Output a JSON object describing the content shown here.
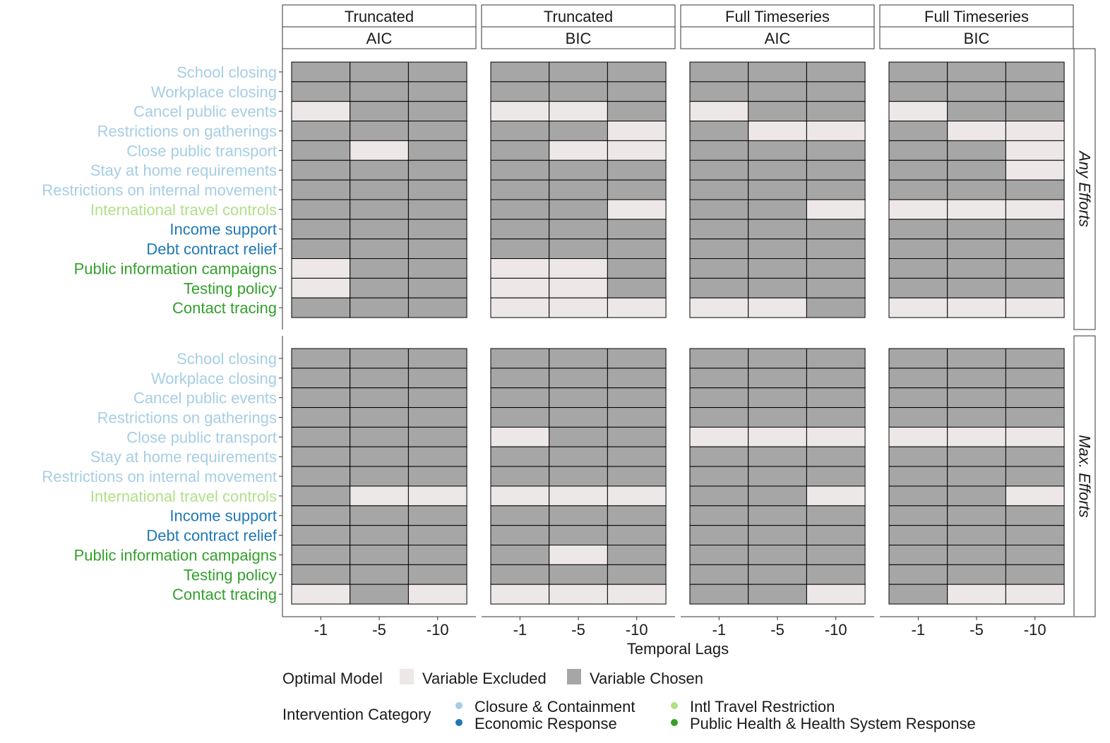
{
  "chart_data": {
    "type": "heatmap",
    "column_facets": [
      {
        "method": "Truncated",
        "criterion": "AIC"
      },
      {
        "method": "Truncated",
        "criterion": "BIC"
      },
      {
        "method": "Full Timeseries",
        "criterion": "AIC"
      },
      {
        "method": "Full Timeseries",
        "criterion": "BIC"
      }
    ],
    "row_facets": [
      "Any Efforts",
      "Max. Efforts"
    ],
    "x_categories": [
      "-1",
      "-5",
      "-10"
    ],
    "xlabel": "Temporal Lags",
    "variables": [
      {
        "name": "School closing",
        "category": "Closure & Containment"
      },
      {
        "name": "Workplace closing",
        "category": "Closure & Containment"
      },
      {
        "name": "Cancel public events",
        "category": "Closure & Containment"
      },
      {
        "name": "Restrictions on gatherings",
        "category": "Closure & Containment"
      },
      {
        "name": "Close public transport",
        "category": "Closure & Containment"
      },
      {
        "name": "Stay at home requirements",
        "category": "Closure & Containment"
      },
      {
        "name": "Restrictions on internal movement",
        "category": "Closure & Containment"
      },
      {
        "name": "International travel controls",
        "category": "Intl Travel Restriction"
      },
      {
        "name": "Income support",
        "category": "Economic Response"
      },
      {
        "name": "Debt contract relief",
        "category": "Economic Response"
      },
      {
        "name": "Public information campaigns",
        "category": "Public Health & Health System Response"
      },
      {
        "name": "Testing policy",
        "category": "Public Health & Health System Response"
      },
      {
        "name": "Contact tracing",
        "category": "Public Health & Health System Response"
      }
    ],
    "value_legend": {
      "title": "Optimal Model",
      "items": [
        {
          "code": 0,
          "label": "Variable Excluded",
          "color": "#ede7e7"
        },
        {
          "code": 1,
          "label": "Variable Chosen",
          "color": "#a6a6a6"
        }
      ]
    },
    "category_legend": {
      "title": "Intervention Category",
      "items": [
        {
          "label": "Closure & Containment",
          "color": "#a6cee3"
        },
        {
          "label": "Intl Travel Restriction",
          "color": "#b2df8a"
        },
        {
          "label": "Economic Response",
          "color": "#1f78b4"
        },
        {
          "label": "Public Health & Health System Response",
          "color": "#33a02c"
        }
      ]
    },
    "values": [
      [
        [
          [
            1,
            1,
            1
          ],
          [
            1,
            1,
            1
          ],
          [
            0,
            1,
            1
          ],
          [
            1,
            1,
            1
          ],
          [
            1,
            0,
            1
          ],
          [
            1,
            1,
            1
          ],
          [
            1,
            1,
            1
          ],
          [
            1,
            1,
            1
          ],
          [
            1,
            1,
            1
          ],
          [
            1,
            1,
            1
          ],
          [
            0,
            1,
            1
          ],
          [
            0,
            1,
            1
          ],
          [
            1,
            1,
            1
          ]
        ],
        [
          [
            1,
            1,
            1
          ],
          [
            1,
            1,
            1
          ],
          [
            0,
            0,
            1
          ],
          [
            1,
            1,
            0
          ],
          [
            1,
            0,
            0
          ],
          [
            1,
            1,
            1
          ],
          [
            1,
            1,
            1
          ],
          [
            1,
            1,
            0
          ],
          [
            1,
            1,
            1
          ],
          [
            1,
            1,
            1
          ],
          [
            0,
            0,
            1
          ],
          [
            0,
            0,
            1
          ],
          [
            0,
            0,
            0
          ]
        ],
        [
          [
            1,
            1,
            1
          ],
          [
            1,
            1,
            1
          ],
          [
            0,
            1,
            1
          ],
          [
            1,
            0,
            0
          ],
          [
            1,
            1,
            1
          ],
          [
            1,
            1,
            1
          ],
          [
            1,
            1,
            1
          ],
          [
            1,
            1,
            0
          ],
          [
            1,
            1,
            1
          ],
          [
            1,
            1,
            1
          ],
          [
            1,
            1,
            1
          ],
          [
            1,
            1,
            1
          ],
          [
            0,
            0,
            1
          ]
        ],
        [
          [
            1,
            1,
            1
          ],
          [
            1,
            1,
            1
          ],
          [
            0,
            1,
            1
          ],
          [
            1,
            0,
            0
          ],
          [
            1,
            1,
            0
          ],
          [
            1,
            1,
            0
          ],
          [
            1,
            1,
            1
          ],
          [
            0,
            0,
            0
          ],
          [
            1,
            1,
            1
          ],
          [
            1,
            1,
            1
          ],
          [
            1,
            1,
            1
          ],
          [
            1,
            1,
            1
          ],
          [
            0,
            0,
            0
          ]
        ]
      ],
      [
        [
          [
            1,
            1,
            1
          ],
          [
            1,
            1,
            1
          ],
          [
            1,
            1,
            1
          ],
          [
            1,
            1,
            1
          ],
          [
            1,
            1,
            1
          ],
          [
            1,
            1,
            1
          ],
          [
            1,
            1,
            1
          ],
          [
            1,
            0,
            0
          ],
          [
            1,
            1,
            1
          ],
          [
            1,
            1,
            1
          ],
          [
            1,
            1,
            1
          ],
          [
            1,
            1,
            1
          ],
          [
            0,
            1,
            0
          ]
        ],
        [
          [
            1,
            1,
            1
          ],
          [
            1,
            1,
            1
          ],
          [
            1,
            1,
            1
          ],
          [
            1,
            1,
            1
          ],
          [
            0,
            1,
            1
          ],
          [
            1,
            1,
            1
          ],
          [
            1,
            1,
            1
          ],
          [
            0,
            0,
            0
          ],
          [
            1,
            1,
            1
          ],
          [
            1,
            1,
            1
          ],
          [
            1,
            0,
            1
          ],
          [
            1,
            1,
            1
          ],
          [
            0,
            0,
            0
          ]
        ],
        [
          [
            1,
            1,
            1
          ],
          [
            1,
            1,
            1
          ],
          [
            1,
            1,
            1
          ],
          [
            1,
            1,
            1
          ],
          [
            0,
            0,
            0
          ],
          [
            1,
            1,
            1
          ],
          [
            1,
            1,
            1
          ],
          [
            1,
            1,
            0
          ],
          [
            1,
            1,
            1
          ],
          [
            1,
            1,
            1
          ],
          [
            1,
            1,
            1
          ],
          [
            1,
            1,
            1
          ],
          [
            1,
            1,
            0
          ]
        ],
        [
          [
            1,
            1,
            1
          ],
          [
            1,
            1,
            1
          ],
          [
            1,
            1,
            1
          ],
          [
            1,
            1,
            1
          ],
          [
            0,
            0,
            0
          ],
          [
            1,
            1,
            1
          ],
          [
            1,
            1,
            1
          ],
          [
            1,
            1,
            0
          ],
          [
            1,
            1,
            1
          ],
          [
            1,
            1,
            1
          ],
          [
            1,
            1,
            1
          ],
          [
            1,
            1,
            1
          ],
          [
            1,
            0,
            0
          ]
        ]
      ]
    ]
  }
}
